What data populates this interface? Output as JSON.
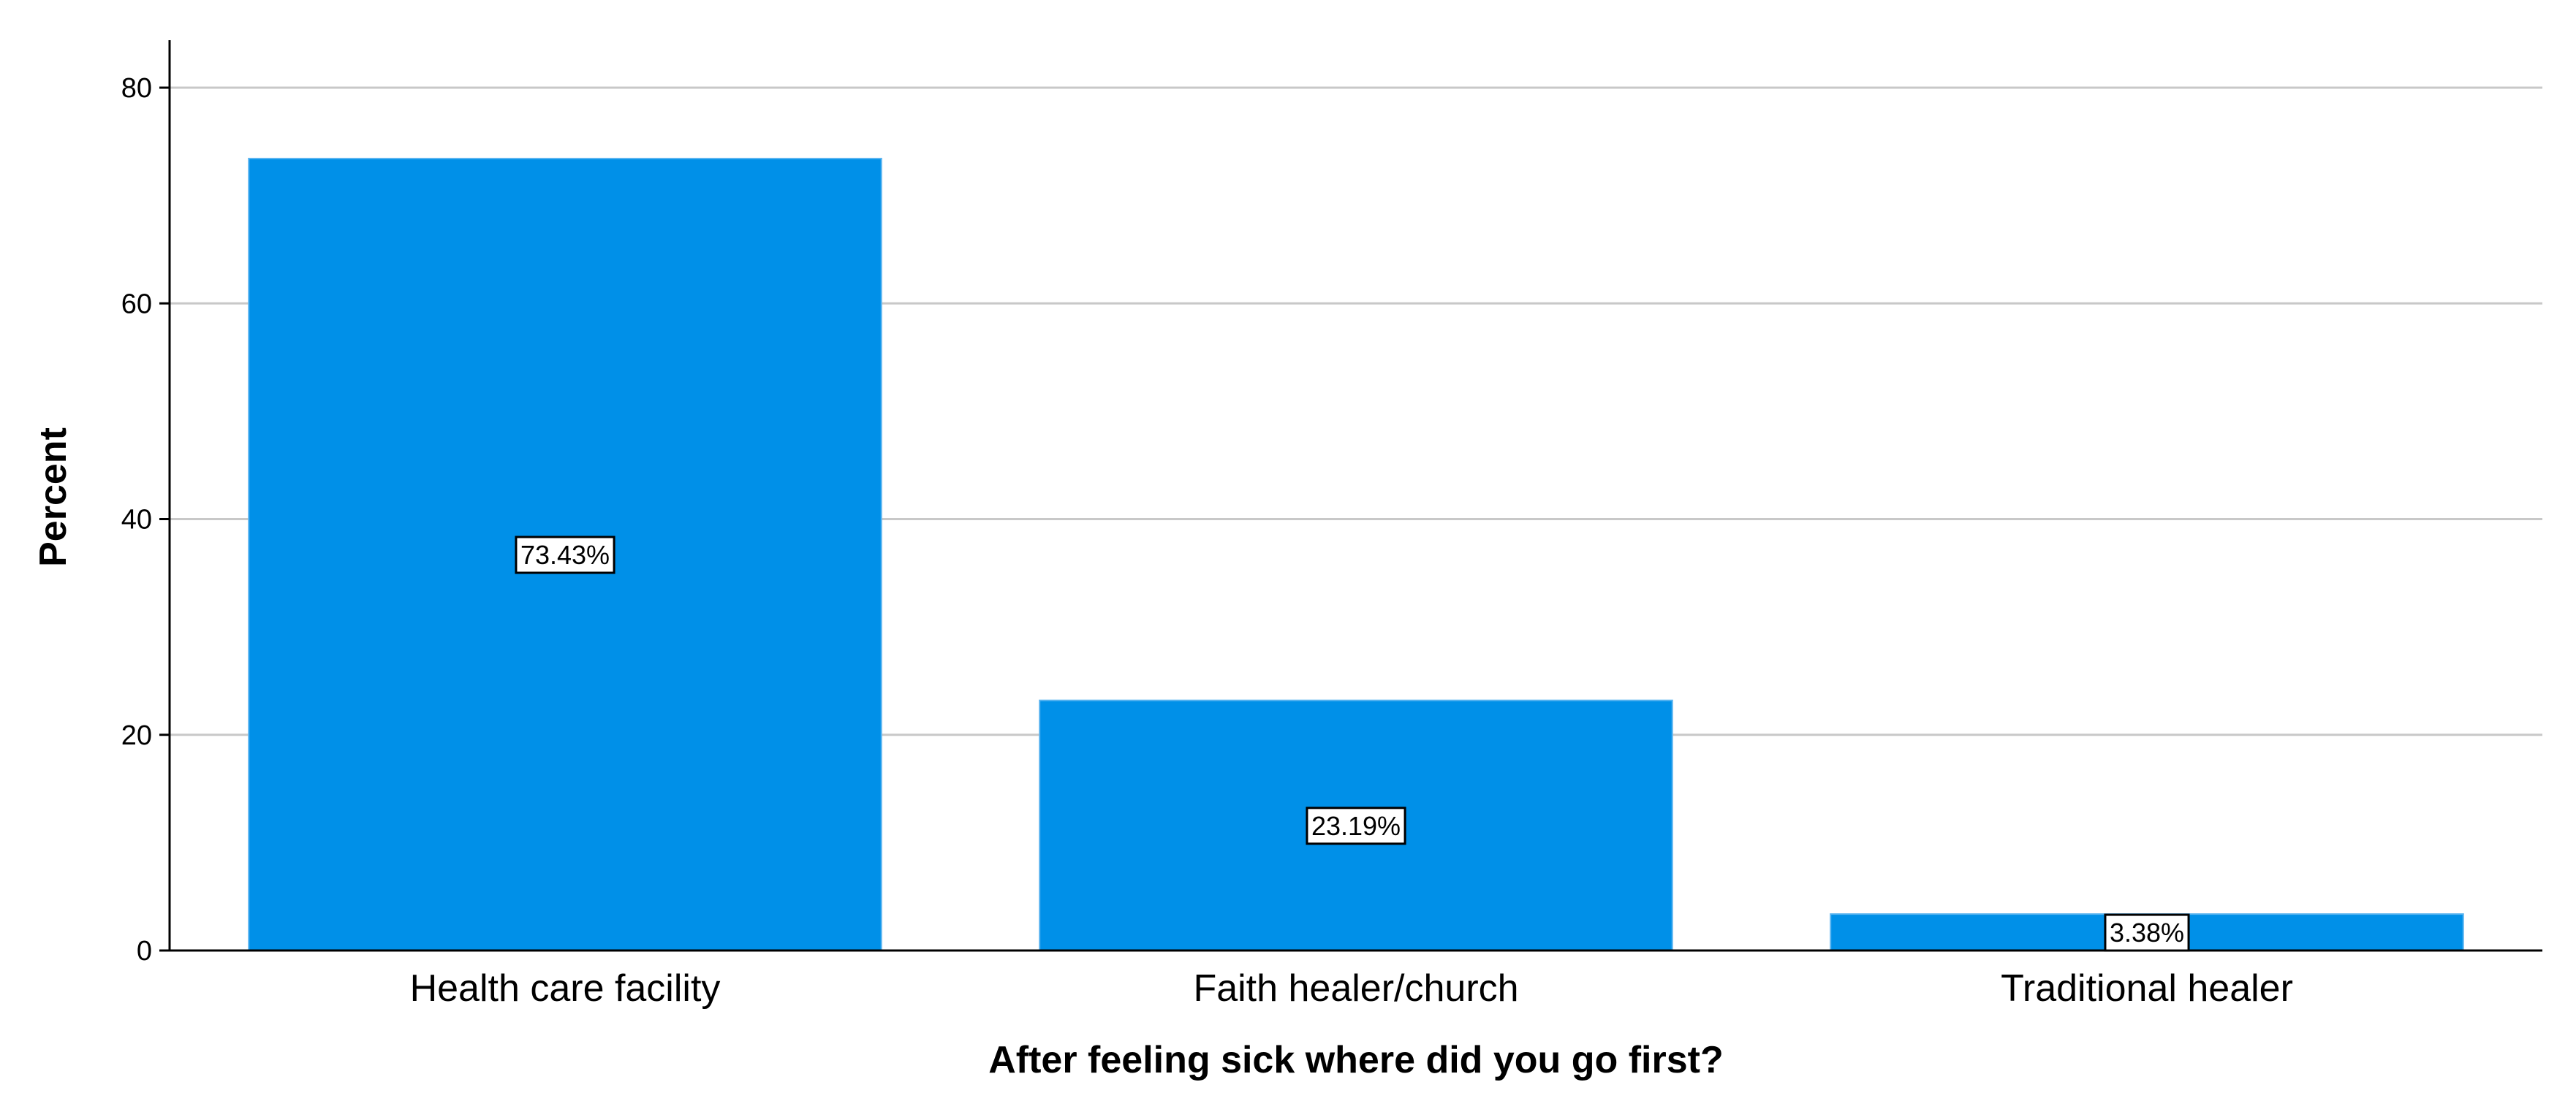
{
  "chart_data": {
    "type": "bar",
    "categories": [
      "Health care facility",
      "Faith healer/church",
      "Traditional healer"
    ],
    "values": [
      73.43,
      23.19,
      3.38
    ],
    "data_labels": [
      "73.43%",
      "23.19%",
      "3.38%"
    ],
    "title": "",
    "xlabel": "After feeling sick where did you go first?",
    "ylabel": "Percent",
    "ylim": [
      0,
      80
    ],
    "yticks": [
      0,
      20,
      40,
      60,
      80
    ],
    "grid": true,
    "bar_color": "#0090E8",
    "grid_color": "#C8C8C8",
    "axis_color": "#000000"
  }
}
